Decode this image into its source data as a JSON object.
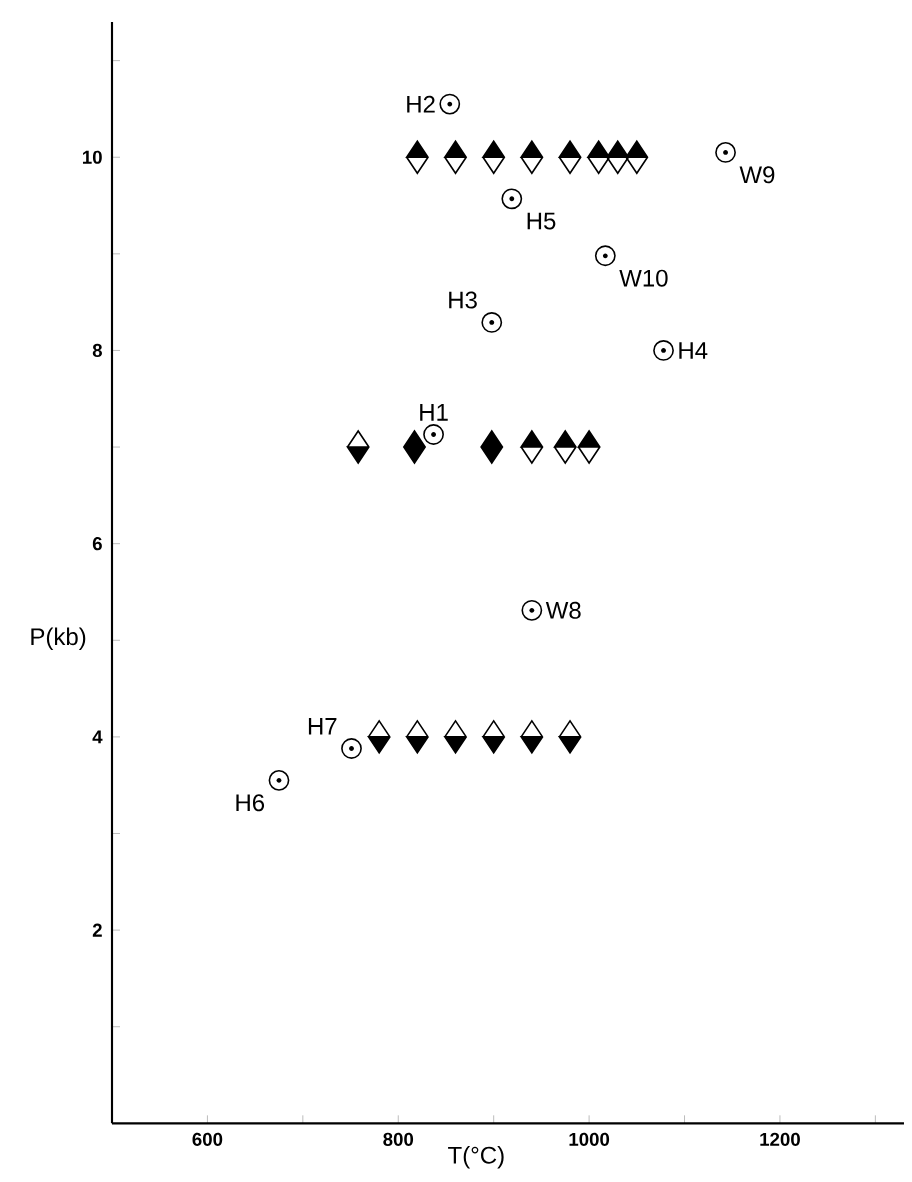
{
  "chart_data": {
    "type": "scatter",
    "xlabel": "T(°C)",
    "ylabel": "P(kb)",
    "xlim": [
      500,
      1330
    ],
    "ylim": [
      0,
      11.4
    ],
    "xticks": [
      600,
      {
        "value": 700,
        "label": null
      },
      800,
      {
        "value": 900,
        "label": null
      },
      1000,
      {
        "value": 1100,
        "label": null
      },
      1200,
      {
        "value": 1300,
        "label": null
      }
    ],
    "yticks": [
      {
        "value": 1,
        "label": null
      },
      2,
      {
        "value": 3,
        "label": null
      },
      4,
      {
        "value": 5,
        "label": null
      },
      6,
      {
        "value": 7,
        "label": null
      },
      8,
      {
        "value": 9,
        "label": null
      },
      10,
      {
        "value": 11,
        "label": null
      }
    ],
    "series": [
      {
        "type": "scatter",
        "marker": "diamond",
        "color": "#000000",
        "x": [
          820,
          860,
          900,
          940,
          980,
          1010,
          1030,
          1050,
          940,
          975,
          1000
        ],
        "values": [
          10,
          10,
          10,
          10,
          10,
          10,
          10,
          10,
          7,
          7,
          7
        ]
      },
      {
        "type": "scatter",
        "marker": "diamond",
        "color": "#000000",
        "x": [
          758,
          780,
          820,
          860,
          900,
          940,
          980
        ],
        "values": [
          7,
          4,
          4,
          4,
          4,
          4,
          4
        ]
      },
      {
        "type": "scatter",
        "marker": "diamond",
        "color": "#000000",
        "x": [
          817,
          898
        ],
        "values": [
          7,
          7
        ]
      },
      {
        "type": "scatter",
        "marker": "circle",
        "color": "#000000",
        "x": [
          854,
          1143,
          919,
          1017,
          898,
          1078,
          837,
          940,
          751,
          675
        ],
        "values": [
          10.55,
          10.05,
          9.57,
          8.98,
          8.29,
          8.0,
          7.13,
          5.31,
          3.88,
          3.55
        ]
      }
    ],
    "annotations": [
      {
        "text": "H2",
        "x": 854,
        "y": 10.55
      },
      {
        "text": "W9",
        "x": 1143,
        "y": 10.05
      },
      {
        "text": "H5",
        "x": 919,
        "y": 9.57
      },
      {
        "text": "W10",
        "x": 1017,
        "y": 8.98
      },
      {
        "text": "H3",
        "x": 898,
        "y": 8.29
      },
      {
        "text": "H4",
        "x": 1078,
        "y": 8.0
      },
      {
        "text": "H1",
        "x": 837,
        "y": 7.13
      },
      {
        "text": "W8",
        "x": 940,
        "y": 5.31
      },
      {
        "text": "H7",
        "x": 751,
        "y": 3.88
      },
      {
        "text": "H6",
        "x": 675,
        "y": 3.55
      }
    ]
  }
}
